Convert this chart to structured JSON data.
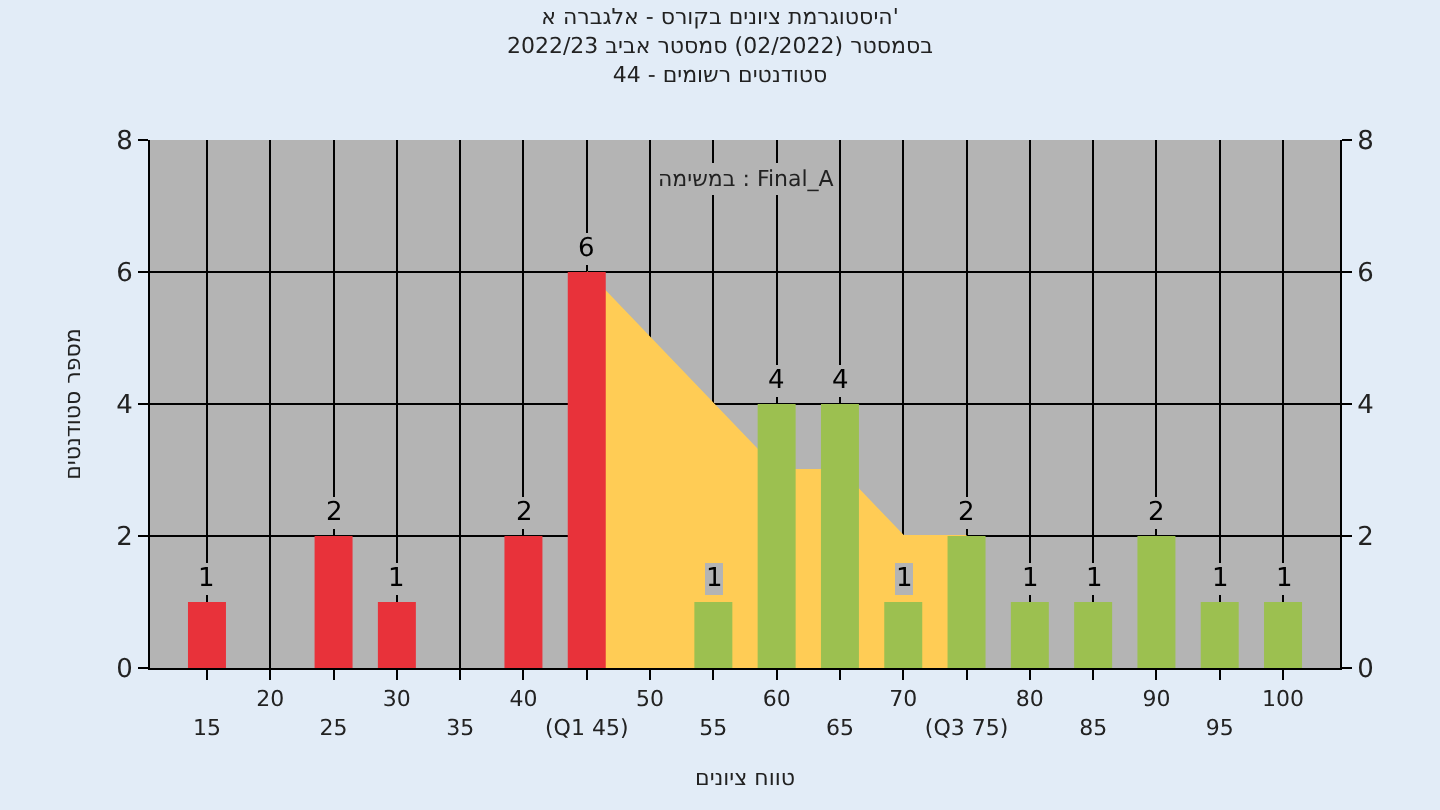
{
  "chart_data": {
    "type": "bar",
    "title": "היסטוגרמת ציונים בקורס - אלגברה א'",
    "subtitle": "בסמסטר (02/2022) סמסטר אביב 2022/23\nסטודנטים רשומים - 44",
    "xlabel": "טווח ציונים",
    "ylabel": "מספר סטודנטים",
    "annotations": [
      "במשימה : Final_A"
    ],
    "categories": [
      "15",
      "20",
      "25",
      "30",
      "35",
      "40",
      "(Q1 45)",
      "50",
      "55",
      "60",
      "65",
      "70",
      "(Q3 75)",
      "80",
      "85",
      "90",
      "95",
      "100"
    ],
    "series": [
      {
        "type": "area",
        "color": "#ffcc55",
        "values": [
          null,
          null,
          null,
          null,
          null,
          null,
          6,
          5,
          4,
          3,
          3,
          2,
          2,
          null,
          null,
          null,
          null,
          null
        ]
      },
      {
        "colors": [
          "#e8323a",
          "#e8323a",
          "#e8323a",
          "#e8323a",
          "#e8323a",
          "#e8323a",
          "#e8323a",
          "#e8323a",
          "#9cc050",
          "#9cc050",
          "#9cc050",
          "#9cc050",
          "#9cc050",
          "#9cc050",
          "#9cc050",
          "#9cc050",
          "#9cc050",
          "#9cc050"
        ],
        "values": [
          1,
          0,
          2,
          1,
          0,
          2,
          6,
          0,
          1,
          4,
          4,
          1,
          2,
          1,
          1,
          2,
          1,
          1
        ],
        "value_labels": [
          "1",
          null,
          "2",
          "1",
          null,
          "2",
          "6",
          null,
          "1",
          "4",
          "4",
          "1",
          "2",
          "1",
          "1",
          "2",
          "1",
          "1"
        ]
      }
    ],
    "ylim": [
      0,
      8
    ],
    "yticks": [
      0,
      2,
      4,
      6,
      8
    ],
    "y2lim": [
      0,
      8
    ],
    "y2ticks": [
      0,
      2,
      4,
      6,
      8
    ],
    "grid": true
  }
}
